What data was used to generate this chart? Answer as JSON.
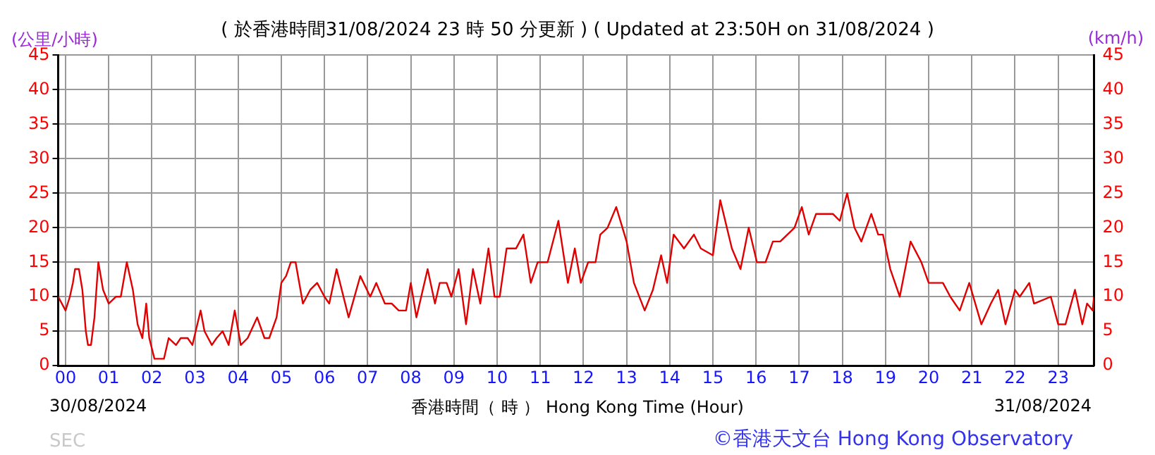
{
  "chart_data": {
    "type": "line",
    "title": "( 於香港時間31/08/2024 23 時 50 分更新 ) ( Updated at 23:50H on 31/08/2024 )",
    "ylabel": "(公里/小時)",
    "y2label": "(km/h)",
    "xlabel": "香港時間（ 時 ） Hong Kong Time (Hour)",
    "annotations": [
      "30/08/2024",
      "31/08/2024",
      "SEC",
      "©香港天文台 Hong Kong Observatory"
    ],
    "x": [
      -0.17,
      0,
      0.1,
      0.17,
      0.22,
      0.31,
      0.39,
      0.47,
      0.52,
      0.59,
      0.67,
      0.76,
      0.87,
      1,
      1.17,
      1.28,
      1.42,
      1.56,
      1.67,
      1.78,
      1.87,
      1.94,
      2.06,
      2.28,
      2.39,
      2.56,
      2.67,
      2.83,
      2.94,
      3.13,
      3.22,
      3.39,
      3.5,
      3.64,
      3.78,
      3.92,
      4.06,
      4.22,
      4.44,
      4.61,
      4.72,
      4.89,
      5,
      5.11,
      5.22,
      5.33,
      5.5,
      5.67,
      5.83,
      6,
      6.11,
      6.28,
      6.56,
      6.83,
      7.06,
      7.2,
      7.4,
      7.56,
      7.72,
      7.89,
      8,
      8.13,
      8.39,
      8.56,
      8.67,
      8.83,
      8.94,
      9.11,
      9.28,
      9.44,
      9.61,
      9.8,
      9.94,
      10.06,
      10.22,
      10.44,
      10.61,
      10.78,
      10.94,
      11.17,
      11.42,
      11.64,
      11.8,
      11.94,
      12.11,
      12.28,
      12.39,
      12.56,
      12.76,
      13,
      13.17,
      13.42,
      13.61,
      13.8,
      13.94,
      14.09,
      14.33,
      14.56,
      14.72,
      15,
      15.17,
      15.44,
      15.64,
      15.83,
      16.02,
      16.22,
      16.39,
      16.56,
      16.89,
      17.06,
      17.22,
      17.39,
      17.78,
      17.94,
      18.11,
      18.28,
      18.44,
      18.67,
      18.83,
      18.94,
      19.11,
      19.33,
      19.58,
      19.83,
      20,
      20.33,
      20.5,
      20.72,
      20.94,
      21.22,
      21.44,
      21.61,
      21.78,
      22,
      22.11,
      22.33,
      22.44,
      22.83,
      23,
      23.17,
      23.39,
      23.56,
      23.67,
      23.8,
      23.83
    ],
    "series": [
      {
        "color": "#e00000",
        "values": [
          10,
          8,
          10,
          12,
          14,
          14,
          11,
          5,
          3,
          3,
          7,
          15,
          11,
          9,
          10,
          10,
          15,
          11,
          6,
          4,
          9,
          4,
          1,
          1,
          4,
          3,
          4,
          4,
          3,
          8,
          5,
          3,
          4,
          5,
          3,
          8,
          3,
          4,
          7,
          4,
          4,
          7,
          12,
          13,
          15,
          15,
          9,
          11,
          12,
          10,
          9,
          14,
          7,
          13,
          10,
          12,
          9,
          9,
          8,
          8,
          12,
          7,
          14,
          9,
          12,
          12,
          10,
          14,
          6,
          14,
          9,
          17,
          10,
          10,
          17,
          17,
          19,
          12,
          15,
          15,
          21,
          12,
          17,
          12,
          15,
          15,
          19,
          20,
          23,
          18,
          12,
          8,
          11,
          16,
          12,
          19,
          17,
          19,
          17,
          16,
          24,
          17,
          14,
          20,
          15,
          15,
          18,
          18,
          20,
          23,
          19,
          22,
          22,
          21,
          25,
          20,
          18,
          22,
          19,
          19,
          14,
          10,
          18,
          15,
          12,
          12,
          10,
          8,
          12,
          6,
          9,
          11,
          6,
          11,
          10,
          12,
          9,
          10,
          6,
          6,
          11,
          6,
          9,
          8,
          10
        ]
      }
    ],
    "xlim": [
      -0.17,
      23.83
    ],
    "xticks": [
      {
        "value": 0,
        "label": "00"
      },
      {
        "value": 1,
        "label": "01"
      },
      {
        "value": 2,
        "label": "02"
      },
      {
        "value": 3,
        "label": "03"
      },
      {
        "value": 4,
        "label": "04"
      },
      {
        "value": 5,
        "label": "05"
      },
      {
        "value": 6,
        "label": "06"
      },
      {
        "value": 7,
        "label": "07"
      },
      {
        "value": 8,
        "label": "08"
      },
      {
        "value": 9,
        "label": "09"
      },
      {
        "value": 10,
        "label": "10"
      },
      {
        "value": 11,
        "label": "11"
      },
      {
        "value": 12,
        "label": "12"
      },
      {
        "value": 13,
        "label": "13"
      },
      {
        "value": 14,
        "label": "14"
      },
      {
        "value": 15,
        "label": "15"
      },
      {
        "value": 16,
        "label": "16"
      },
      {
        "value": 17,
        "label": "17"
      },
      {
        "value": 18,
        "label": "18"
      },
      {
        "value": 19,
        "label": "19"
      },
      {
        "value": 20,
        "label": "20"
      },
      {
        "value": 21,
        "label": "21"
      },
      {
        "value": 22,
        "label": "22"
      },
      {
        "value": 23,
        "label": "23"
      }
    ],
    "ylim": [
      0,
      45
    ],
    "yticks": [
      0,
      5,
      10,
      15,
      20,
      25,
      30,
      35,
      40,
      45
    ],
    "y2lim": [
      0,
      45
    ],
    "y2ticks": [
      0,
      5,
      10,
      15,
      20,
      25,
      30,
      35,
      40,
      45
    ],
    "grid": true,
    "legend": false,
    "marker": "none",
    "line_style": "solid"
  }
}
